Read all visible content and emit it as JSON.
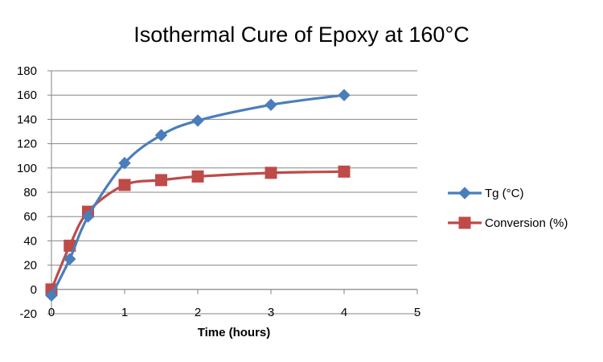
{
  "chart_data": {
    "type": "line",
    "title": "Isothermal Cure of Epoxy at 160°C",
    "xlabel": "Time (hours)",
    "ylabel": "",
    "xlim": [
      0,
      5
    ],
    "ylim": [
      -20,
      180
    ],
    "x_ticks": [
      0,
      1,
      2,
      3,
      4,
      5
    ],
    "y_ticks": [
      -20,
      0,
      20,
      40,
      60,
      80,
      100,
      120,
      140,
      160,
      180
    ],
    "grid": "horizontal",
    "legend_position": "right",
    "series": [
      {
        "name": "Tg (°C)",
        "color": "#4a7ebb",
        "marker": "diamond",
        "x": [
          0,
          0.25,
          0.5,
          1,
          1.5,
          2,
          3,
          4
        ],
        "values": [
          -5,
          25,
          60,
          104,
          127,
          139,
          152,
          160
        ]
      },
      {
        "name": "Conversion (%)",
        "color": "#be4b48",
        "marker": "square",
        "x": [
          0,
          0.25,
          0.5,
          1,
          1.5,
          2,
          3,
          4
        ],
        "values": [
          0,
          36,
          64,
          86,
          90,
          93,
          96,
          97
        ]
      }
    ]
  }
}
